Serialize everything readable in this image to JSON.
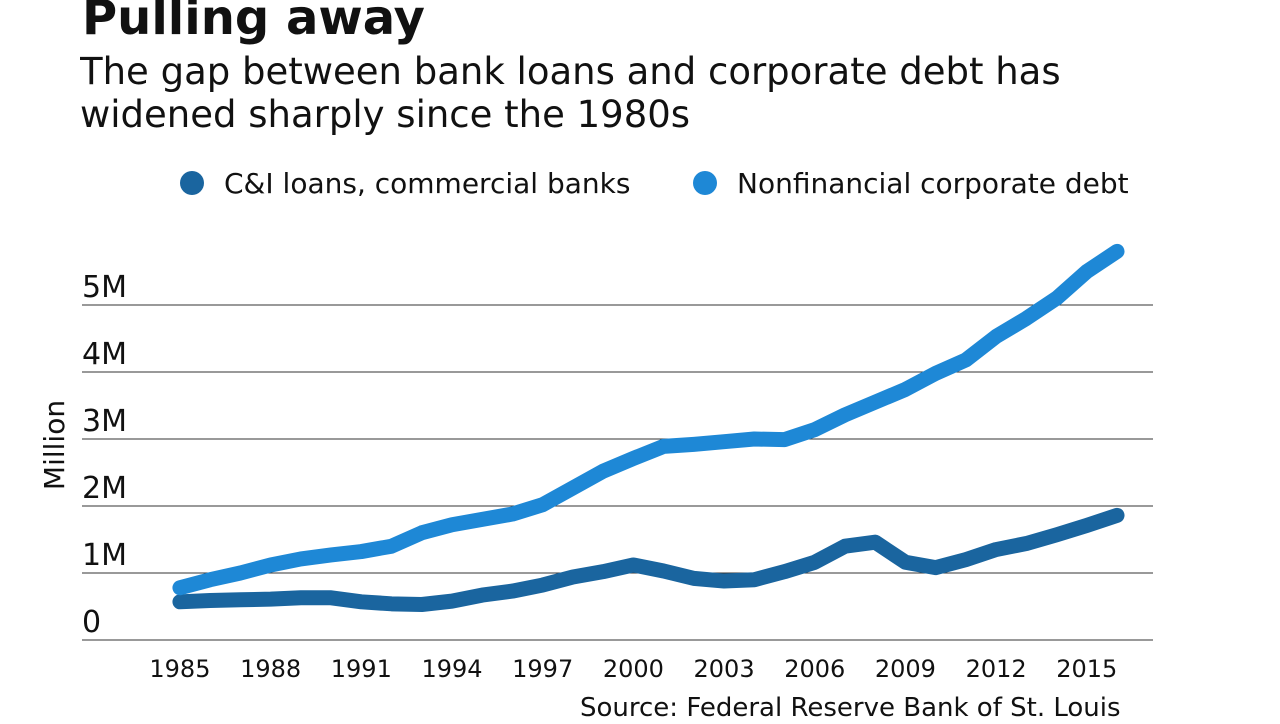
{
  "chart_data": {
    "type": "line",
    "title": "Pulling away",
    "subtitle": "The gap between bank loans and corporate debt has widened sharply since the 1980s",
    "y_label": "Million",
    "source": "Source: Federal Reserve Bank of St. Louis",
    "x": [
      1985,
      1986,
      1987,
      1988,
      1989,
      1990,
      1991,
      1992,
      1993,
      1994,
      1995,
      1996,
      1997,
      1998,
      1999,
      2000,
      2001,
      2002,
      2003,
      2004,
      2005,
      2006,
      2007,
      2008,
      2009,
      2010,
      2011,
      2012,
      2013,
      2014,
      2015,
      2016
    ],
    "series": [
      {
        "name": "C&I loans, commercial banks",
        "color": "#1a659f",
        "values": [
          0.57,
          0.59,
          0.6,
          0.61,
          0.63,
          0.63,
          0.57,
          0.54,
          0.53,
          0.58,
          0.67,
          0.73,
          0.82,
          0.94,
          1.02,
          1.12,
          1.03,
          0.92,
          0.88,
          0.9,
          1.02,
          1.16,
          1.4,
          1.46,
          1.16,
          1.08,
          1.2,
          1.35,
          1.44,
          1.57,
          1.71,
          1.86
        ]
      },
      {
        "name": "Nonfinancial corporate debt",
        "color": "#1e88d6",
        "values": [
          0.78,
          0.9,
          1.0,
          1.12,
          1.21,
          1.27,
          1.32,
          1.4,
          1.6,
          1.72,
          1.8,
          1.88,
          2.02,
          2.27,
          2.52,
          2.71,
          2.89,
          2.92,
          2.96,
          3.0,
          2.99,
          3.14,
          3.36,
          3.55,
          3.74,
          3.98,
          4.18,
          4.53,
          4.8,
          5.1,
          5.5,
          5.8
        ]
      }
    ],
    "xlim": [
      1981.76,
      2017.19
    ],
    "xticks": [
      1985,
      1988,
      1991,
      1994,
      1997,
      2000,
      2003,
      2006,
      2009,
      2012,
      2015
    ],
    "ylim": [
      0,
      6
    ],
    "yticks": [
      0,
      {
        "value": 1,
        "label": "1M"
      },
      {
        "value": 2,
        "label": "2M"
      },
      {
        "value": 3,
        "label": "3M"
      },
      {
        "value": 4,
        "label": "4M"
      },
      {
        "value": 5,
        "label": "5M"
      }
    ],
    "grid": true
  }
}
